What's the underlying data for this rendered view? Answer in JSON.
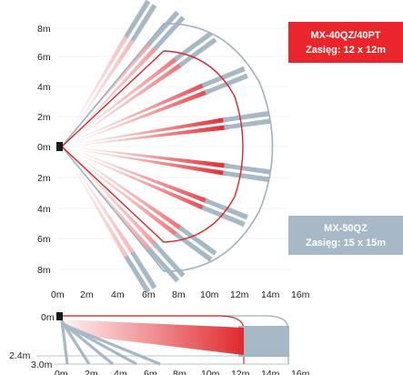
{
  "top_view": {
    "y_axis_labels": [
      "8m",
      "6m",
      "4m",
      "2m",
      "0m",
      "2m",
      "4m",
      "6m",
      "8m"
    ],
    "x_axis_labels": [
      "0m",
      "2m",
      "4m",
      "6m",
      "8m",
      "10m",
      "12m",
      "14m",
      "16m"
    ]
  },
  "side_view": {
    "y_axis_labels": [
      "0m",
      "2.4m",
      "3.0m"
    ],
    "x_axis_labels": [
      "0m",
      "2m",
      "4m",
      "6m",
      "8m",
      "10m",
      "12m",
      "14m",
      "16m"
    ]
  },
  "models": [
    {
      "name": "MX-40QZ/40PT",
      "range": "Zasięg: 12 x 12m",
      "color": "#e8262b"
    },
    {
      "name": "MX-50QZ",
      "range": "Zasięg: 15 x 15m",
      "color": "#a7b8c6"
    }
  ],
  "colors": {
    "red": "#e02a2f",
    "gray": "#a7b8c6",
    "outline_red": "#d9262b",
    "outline_gray": "#9fb0be"
  }
}
